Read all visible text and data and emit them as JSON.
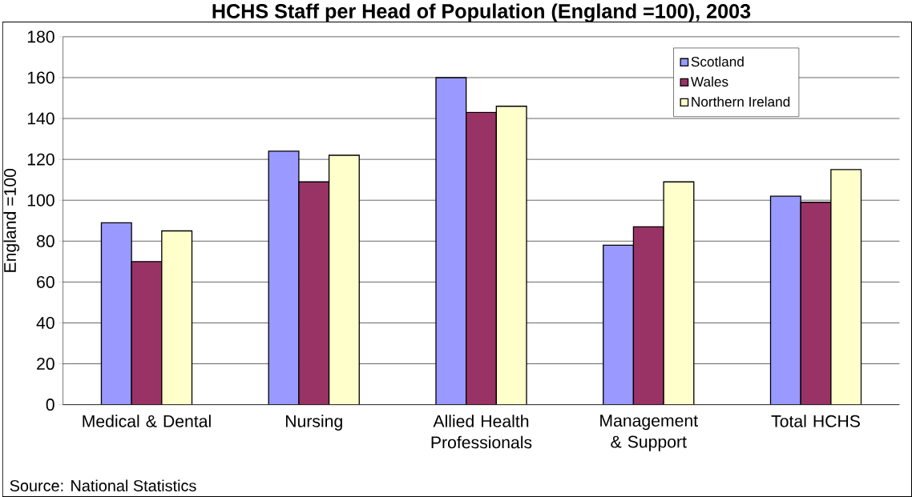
{
  "chart_data": {
    "type": "bar",
    "title": "HCHS Staff per Head of Population (England =100), 2003",
    "ylabel": "England =100",
    "categories": [
      "Medical & Dental",
      "Nursing",
      "Allied Health Professionals",
      "Management & Support",
      "Total HCHS"
    ],
    "series": [
      {
        "name": "Scotland",
        "color": "#9999ff",
        "values": [
          89,
          124,
          160,
          78,
          102
        ]
      },
      {
        "name": "Wales",
        "color": "#993366",
        "values": [
          70,
          109,
          143,
          87,
          99
        ]
      },
      {
        "name": "Northern Ireland",
        "color": "#ffffcc",
        "values": [
          85,
          122,
          146,
          109,
          115
        ]
      }
    ],
    "ylim": [
      0,
      180
    ],
    "yticks": [
      0,
      20,
      40,
      60,
      80,
      100,
      120,
      140,
      160,
      180
    ],
    "grid": "y",
    "legend": "top right",
    "annotations": [
      "Source: National Statistics"
    ]
  }
}
